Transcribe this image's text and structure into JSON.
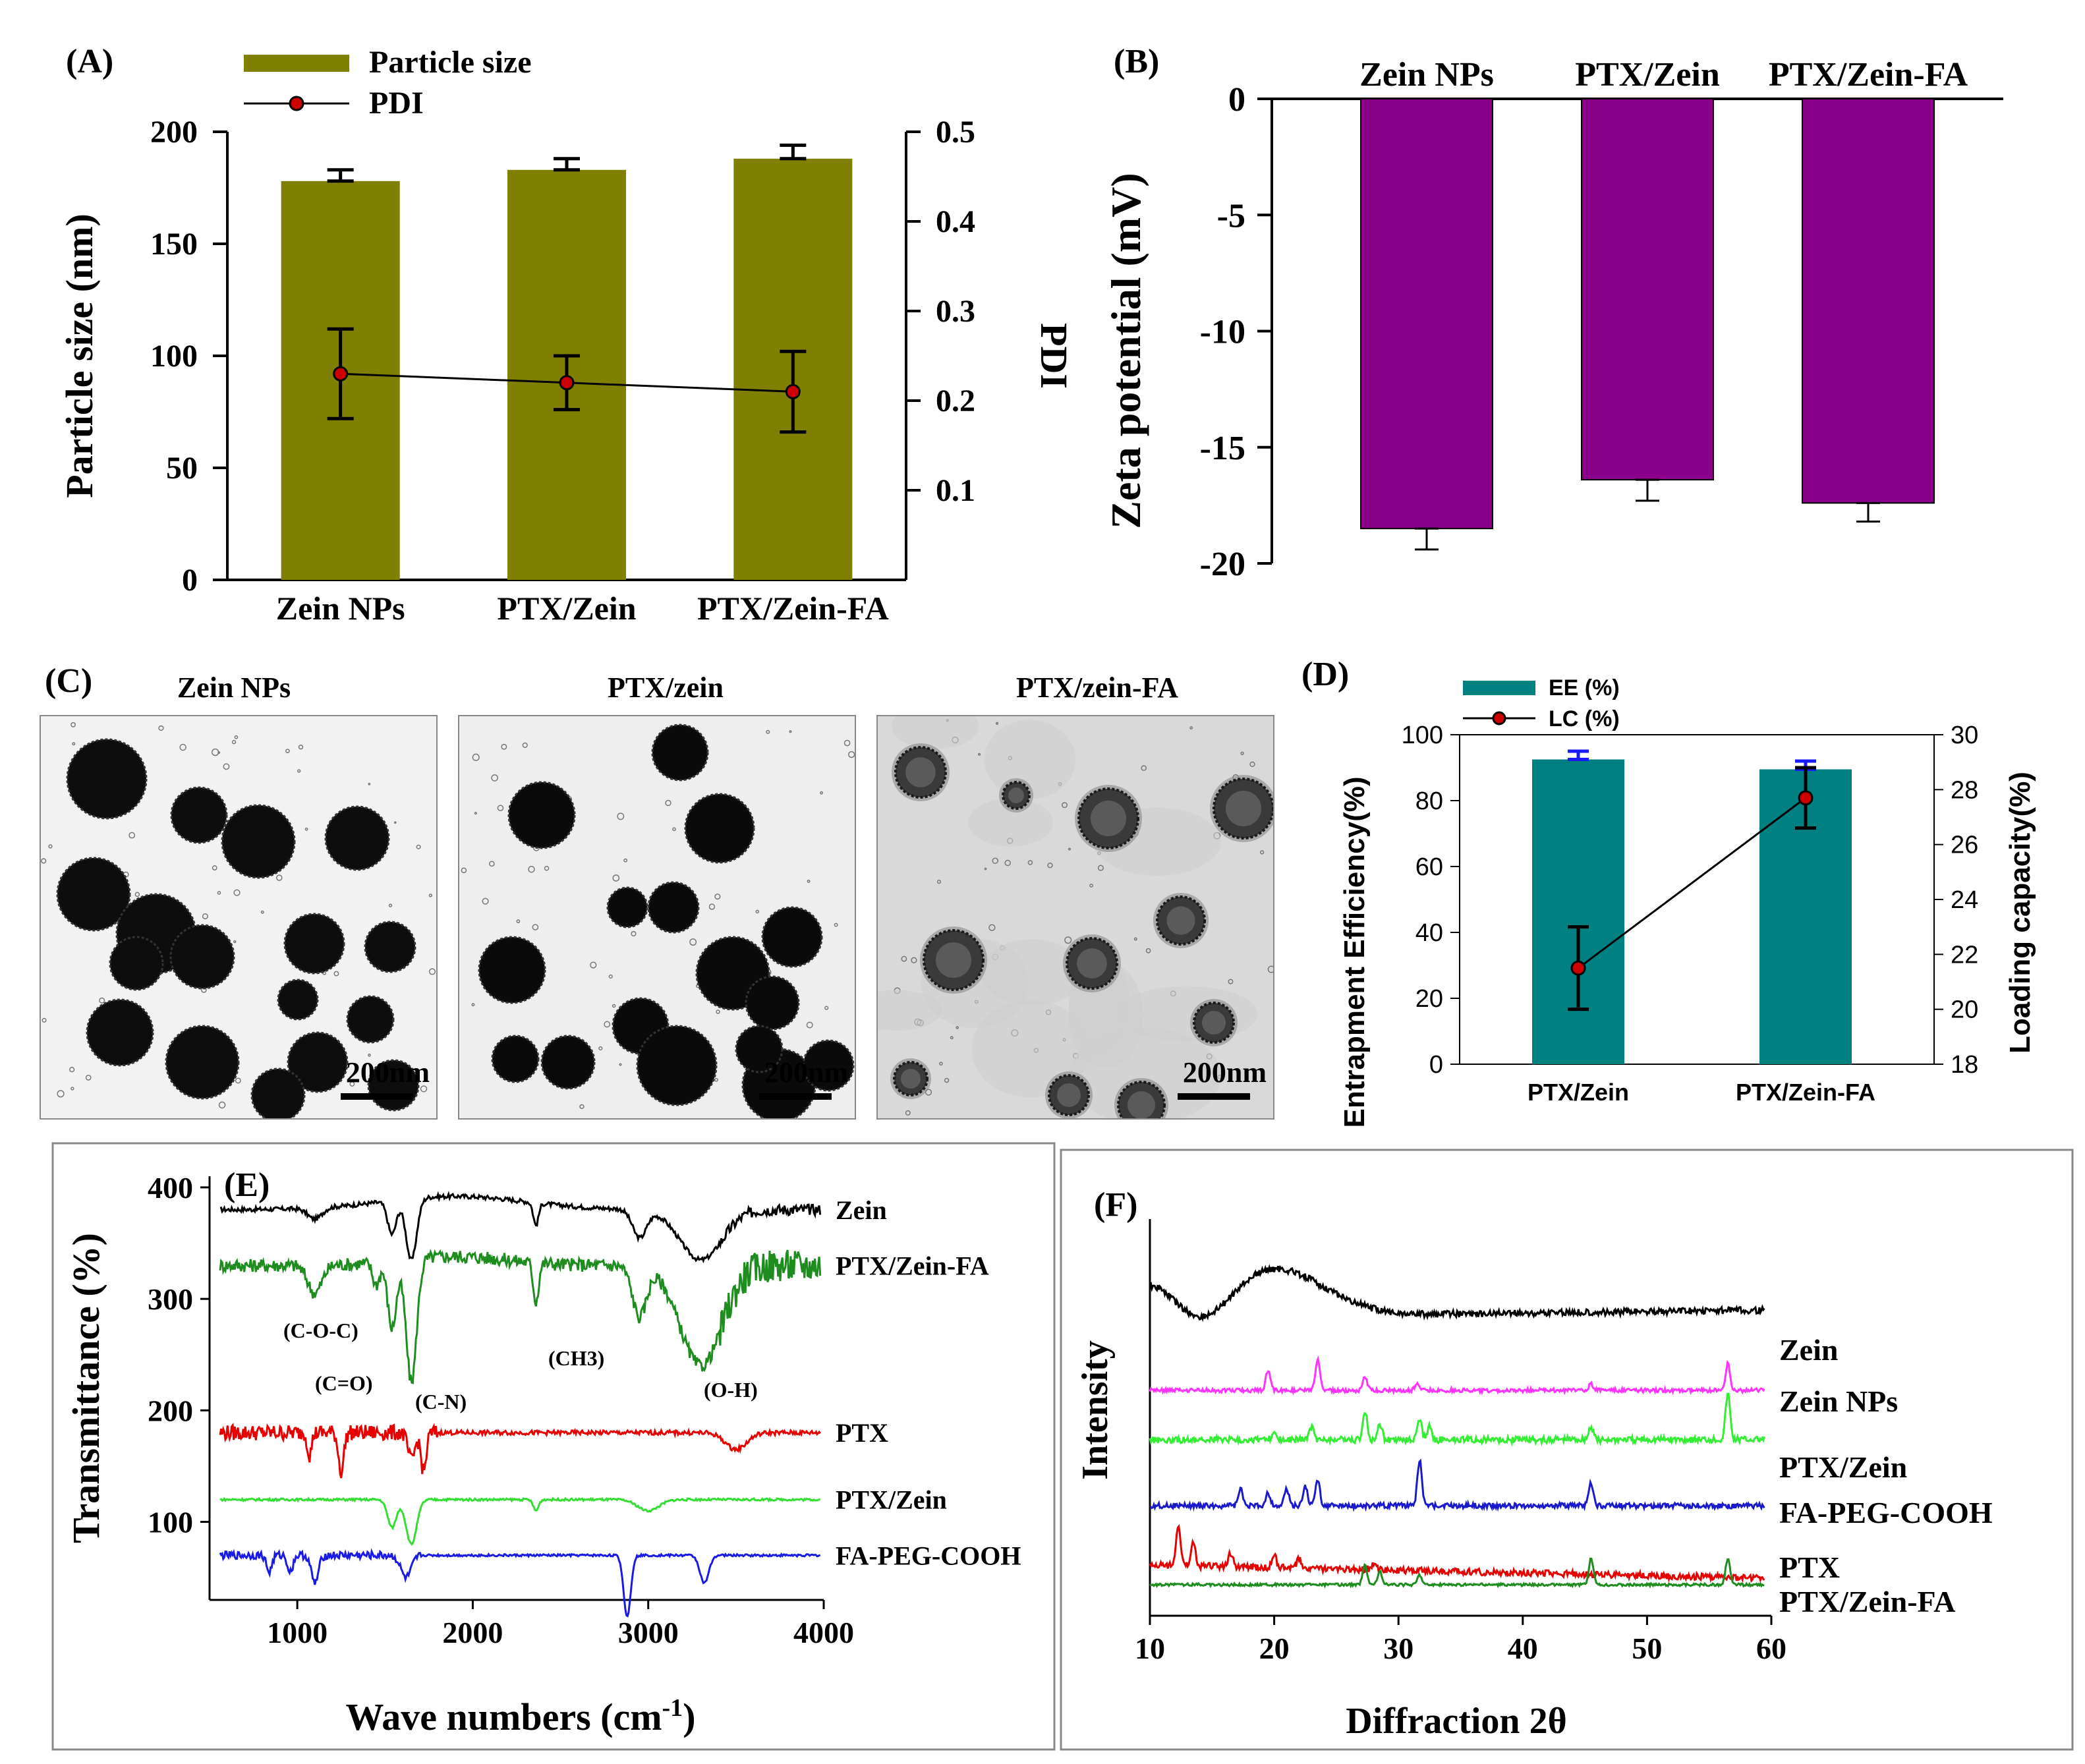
{
  "panels": {
    "A": "(A)",
    "B": "(B)",
    "C": "(C)",
    "D": "(D)",
    "E": "(E)",
    "F": "(F)"
  },
  "chart_data": [
    {
      "id": "A",
      "type": "bar",
      "title": "",
      "categories": [
        "Zein NPs",
        "PTX/Zein",
        "PTX/Zein-FA"
      ],
      "series": [
        {
          "name": "Particle size",
          "axis": "left",
          "values": [
            178,
            183,
            188
          ],
          "errors": [
            5,
            5,
            6
          ],
          "color": "#808000"
        },
        {
          "name": "PDI",
          "axis": "right",
          "type": "line",
          "values": [
            0.23,
            0.22,
            0.21
          ],
          "errors": [
            0.05,
            0.03,
            0.045
          ],
          "color": "#cc0000"
        }
      ],
      "ylabel": "Particle size (nm)",
      "ylim": [
        0,
        200
      ],
      "yticks": [
        "0",
        "50",
        "100",
        "150",
        "200"
      ],
      "y2label": "PDI",
      "y2lim": [
        0,
        0.5
      ],
      "y2ticks": [
        "0.1",
        "0.2",
        "0.3",
        "0.4",
        "0.5"
      ],
      "legend": [
        "Particle size",
        "PDI"
      ]
    },
    {
      "id": "B",
      "type": "bar",
      "categories": [
        "Zein NPs",
        "PTX/Zein",
        "PTX/Zein-FA"
      ],
      "series": [
        {
          "name": "Zeta potential",
          "values": [
            -18.5,
            -16.4,
            -17.4
          ],
          "errors": [
            0.9,
            0.9,
            0.8
          ],
          "color": "#8b008b"
        }
      ],
      "ylabel": "Zeta potential (mV)",
      "ylim": [
        -20,
        0
      ],
      "yticks": [
        "0",
        "-5",
        "-10",
        "-15",
        "-20"
      ]
    },
    {
      "id": "D",
      "type": "bar",
      "categories": [
        "PTX/Zein",
        "PTX/Zein-FA"
      ],
      "series": [
        {
          "name": "EE (%)",
          "axis": "left",
          "values": [
            92.5,
            89.5
          ],
          "errors": [
            2.5,
            2.5
          ],
          "color": "#008080"
        },
        {
          "name": "LC (%)",
          "axis": "right",
          "type": "line",
          "values": [
            21.5,
            27.7
          ],
          "errors": [
            1.5,
            1.1
          ],
          "color": "#cc0000"
        }
      ],
      "ylabel": "Entrapment Efficiency(%)",
      "ylim": [
        0,
        100
      ],
      "yticks": [
        "0",
        "20",
        "40",
        "60",
        "80",
        "100"
      ],
      "y2label": "Loading capacity(%)",
      "y2lim": [
        18,
        30
      ],
      "y2ticks": [
        "18",
        "20",
        "22",
        "24",
        "26",
        "28",
        "30"
      ],
      "legend": [
        "EE (%)",
        "LC (%)"
      ]
    },
    {
      "id": "E",
      "type": "line",
      "xlabel_main": "Wave numbers (cm",
      "xlabel_sup": "-1",
      "xlabel_end": ")",
      "ylabel": "Transmittance (%)",
      "xlim": [
        500,
        4000
      ],
      "ylim": [
        30,
        410
      ],
      "xticks": [
        "1000",
        "2000",
        "3000",
        "4000"
      ],
      "yticks": [
        "100",
        "200",
        "300",
        "400"
      ],
      "series": [
        {
          "name": "Zein",
          "color": "#000000",
          "base": 380
        },
        {
          "name": "PTX/Zein-FA",
          "color": "#1e8c1e",
          "base": 330
        },
        {
          "name": "PTX",
          "color": "#e60000",
          "base": 180
        },
        {
          "name": "PTX/Zein",
          "color": "#33dd33",
          "base": 120
        },
        {
          "name": "FA-PEG-COOH",
          "color": "#1a1ae6",
          "base": 70
        }
      ],
      "annotations": [
        "(C-O-C)",
        "(C=O)",
        "(C-N)",
        "(CH3)",
        "(O-H)"
      ]
    },
    {
      "id": "F",
      "type": "line",
      "xlabel": "Diffraction 2θ",
      "ylabel": "Intensity",
      "xlim": [
        10,
        60
      ],
      "xticks": [
        "10",
        "20",
        "30",
        "40",
        "50",
        "60"
      ],
      "series": [
        {
          "name": "Zein",
          "color": "#000000"
        },
        {
          "name": "Zein NPs",
          "color": "#ff33ff"
        },
        {
          "name": "PTX/Zein",
          "color": "#33ee33"
        },
        {
          "name": "FA-PEG-COOH",
          "color": "#1a1acc"
        },
        {
          "name": "PTX",
          "color": "#e60000"
        },
        {
          "name": "PTX/Zein-FA",
          "color": "#1e8c1e"
        }
      ]
    }
  ],
  "tem": {
    "labels": [
      "Zein NPs",
      "PTX/zein",
      "PTX/zein-FA"
    ],
    "scale_bars": [
      "200nm",
      "200nm",
      "200nm"
    ]
  }
}
